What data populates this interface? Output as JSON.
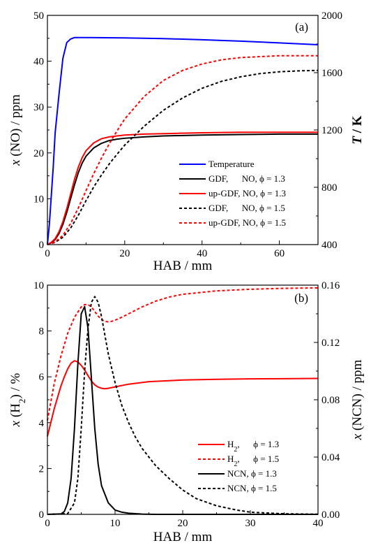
{
  "chart_data": [
    {
      "type": "line",
      "panel_label": "(a)",
      "xlabel": "HAB / mm",
      "ylabel": "x (NO) / ppm",
      "y2label": "T / K",
      "xlim": [
        0,
        70
      ],
      "ylim": [
        0,
        50
      ],
      "y2lim": [
        400,
        2000
      ],
      "x_ticks": [
        "0",
        "20",
        "40",
        "60"
      ],
      "y_ticks": [
        "0",
        "10",
        "20",
        "30",
        "40",
        "50"
      ],
      "y2_ticks": [
        "400",
        "800",
        "1200",
        "1600",
        "2000"
      ],
      "legend_position": "lower-right",
      "colors": {
        "temperature": "#0000ff",
        "red": "#ff0000",
        "black": "#000000",
        "y2_title": "#0000ff"
      },
      "series": [
        {
          "name": "Temperature",
          "axis": "right",
          "color": "#0000ff",
          "dash": "solid",
          "x": [
            0,
            0.5,
            1,
            1.5,
            2,
            3,
            4,
            5,
            6,
            7,
            8,
            10,
            20,
            30,
            40,
            50,
            60,
            70
          ],
          "y": [
            400,
            540,
            740,
            940,
            1180,
            1450,
            1700,
            1810,
            1835,
            1845,
            1845,
            1845,
            1843,
            1838,
            1830,
            1820,
            1808,
            1795
          ]
        },
        {
          "name": "GDF,      NO, ϕ = 1.3",
          "axis": "left",
          "color": "#000000",
          "dash": "solid",
          "x": [
            0,
            1,
            2,
            3,
            4,
            5,
            6,
            7,
            8,
            9,
            10,
            12,
            14,
            16,
            18,
            20,
            25,
            30,
            40,
            50,
            60,
            70
          ],
          "y": [
            0,
            0.4,
            1.1,
            2.4,
            4.4,
            7.0,
            10.0,
            13.0,
            15.7,
            17.8,
            19.3,
            21.1,
            22.1,
            22.7,
            23.0,
            23.2,
            23.5,
            23.7,
            23.9,
            24.0,
            24.1,
            24.1
          ]
        },
        {
          "name": "up-GDF, NO, ϕ = 1.3",
          "axis": "left",
          "color": "#ff0000",
          "dash": "solid",
          "x": [
            0,
            1,
            2,
            3,
            4,
            5,
            6,
            7,
            8,
            9,
            10,
            12,
            14,
            16,
            18,
            20,
            25,
            30,
            40,
            50,
            60,
            70
          ],
          "y": [
            0,
            0.5,
            1.3,
            2.8,
            5.0,
            7.8,
            11.0,
            14.2,
            16.9,
            19.0,
            20.5,
            22.2,
            23.1,
            23.5,
            23.7,
            23.9,
            24.1,
            24.2,
            24.4,
            24.5,
            24.5,
            24.5
          ]
        },
        {
          "name": "GDF,      NO, ϕ = 1.5",
          "axis": "left",
          "color": "#000000",
          "dash": "dashed",
          "x": [
            0,
            2,
            4,
            6,
            8,
            10,
            12,
            14,
            16,
            18,
            20,
            25,
            30,
            35,
            40,
            45,
            50,
            55,
            60,
            65,
            70
          ],
          "y": [
            0,
            0.5,
            1.6,
            3.6,
            6.4,
            9.6,
            12.6,
            15.2,
            17.6,
            19.7,
            21.7,
            25.8,
            29.3,
            32.0,
            34.1,
            35.6,
            36.6,
            37.3,
            37.7,
            37.9,
            38.0
          ]
        },
        {
          "name": "up-GDF, NO, ϕ = 1.5",
          "axis": "left",
          "color": "#ff0000",
          "dash": "dashed",
          "x": [
            0,
            2,
            4,
            6,
            8,
            10,
            12,
            14,
            16,
            18,
            20,
            25,
            30,
            35,
            40,
            45,
            50,
            55,
            60,
            65,
            70
          ],
          "y": [
            0,
            0.6,
            2.0,
            4.6,
            8.0,
            11.8,
            15.5,
            18.9,
            22.0,
            24.8,
            27.4,
            32.3,
            35.8,
            38.0,
            39.4,
            40.3,
            40.8,
            41.0,
            41.2,
            41.2,
            41.2
          ]
        }
      ]
    },
    {
      "type": "line",
      "panel_label": "(b)",
      "xlabel": "HAB / mm",
      "ylabel": "x (H2) / %",
      "y2label": "x (NCN) / ppm",
      "xlim": [
        0,
        40
      ],
      "ylim": [
        0,
        10
      ],
      "y2lim": [
        0,
        0.16
      ],
      "x_ticks": [
        "0",
        "10",
        "20",
        "30",
        "40"
      ],
      "y_ticks": [
        "0",
        "2",
        "4",
        "6",
        "8",
        "10"
      ],
      "y2_ticks": [
        "0.00",
        "0.04",
        "0.08",
        "0.12",
        "0.16"
      ],
      "legend_position": "lower-right",
      "colors": {
        "red": "#ff0000",
        "black": "#000000",
        "y1_title": "#ff0000"
      },
      "series": [
        {
          "name": "H2,      ϕ = 1.3",
          "axis": "left",
          "color": "#ff0000",
          "dash": "solid",
          "x": [
            0,
            0.5,
            1,
            1.5,
            2,
            2.5,
            3,
            3.5,
            4,
            4.5,
            5,
            5.5,
            6,
            6.5,
            7,
            7.5,
            8,
            8.5,
            9,
            10,
            12,
            15,
            20,
            25,
            30,
            35,
            40
          ],
          "y": [
            3.4,
            4.0,
            4.6,
            5.1,
            5.6,
            6.0,
            6.35,
            6.6,
            6.7,
            6.65,
            6.5,
            6.3,
            6.05,
            5.82,
            5.65,
            5.55,
            5.5,
            5.48,
            5.5,
            5.56,
            5.68,
            5.79,
            5.86,
            5.89,
            5.91,
            5.92,
            5.93
          ]
        },
        {
          "name": "H2,      ϕ = 1.5",
          "axis": "left",
          "color": "#ff0000",
          "dash": "dashed",
          "x": [
            0,
            1,
            2,
            3,
            4,
            5,
            5.5,
            6,
            6.5,
            7,
            7.5,
            8,
            8.5,
            9,
            9.5,
            10,
            11,
            12,
            14,
            16,
            18,
            20,
            25,
            30,
            35,
            40
          ],
          "y": [
            4.1,
            5.7,
            6.9,
            7.9,
            8.6,
            9.05,
            9.15,
            9.15,
            9.05,
            8.85,
            8.65,
            8.5,
            8.42,
            8.4,
            8.42,
            8.47,
            8.6,
            8.75,
            9.05,
            9.3,
            9.48,
            9.6,
            9.75,
            9.82,
            9.86,
            9.88
          ]
        },
        {
          "name": "NCN, ϕ = 1.3",
          "axis": "right",
          "color": "#000000",
          "dash": "solid",
          "x": [
            0,
            2,
            2.5,
            3,
            3.5,
            4,
            4.5,
            5,
            5.5,
            6,
            6.5,
            7,
            7.5,
            8,
            9,
            10,
            11,
            12,
            14,
            16,
            40
          ],
          "y": [
            0,
            0.0003,
            0.002,
            0.008,
            0.025,
            0.06,
            0.105,
            0.14,
            0.145,
            0.13,
            0.095,
            0.06,
            0.035,
            0.02,
            0.008,
            0.003,
            0.0015,
            0.0008,
            0.0002,
            0,
            0
          ]
        },
        {
          "name": "NCN, ϕ = 1.5",
          "axis": "right",
          "color": "#000000",
          "dash": "dashed",
          "x": [
            0,
            3,
            4,
            4.5,
            5,
            5.5,
            6,
            6.5,
            7,
            7.5,
            8,
            8.5,
            9,
            10,
            11,
            12,
            13,
            14,
            16,
            18,
            20,
            22,
            25,
            28,
            30,
            35,
            40
          ],
          "y": [
            0,
            0.0005,
            0.008,
            0.025,
            0.06,
            0.1,
            0.13,
            0.148,
            0.152,
            0.148,
            0.138,
            0.125,
            0.112,
            0.092,
            0.076,
            0.064,
            0.054,
            0.046,
            0.034,
            0.025,
            0.017,
            0.011,
            0.006,
            0.003,
            0.0015,
            0.0004,
            0.0001
          ]
        }
      ]
    }
  ]
}
